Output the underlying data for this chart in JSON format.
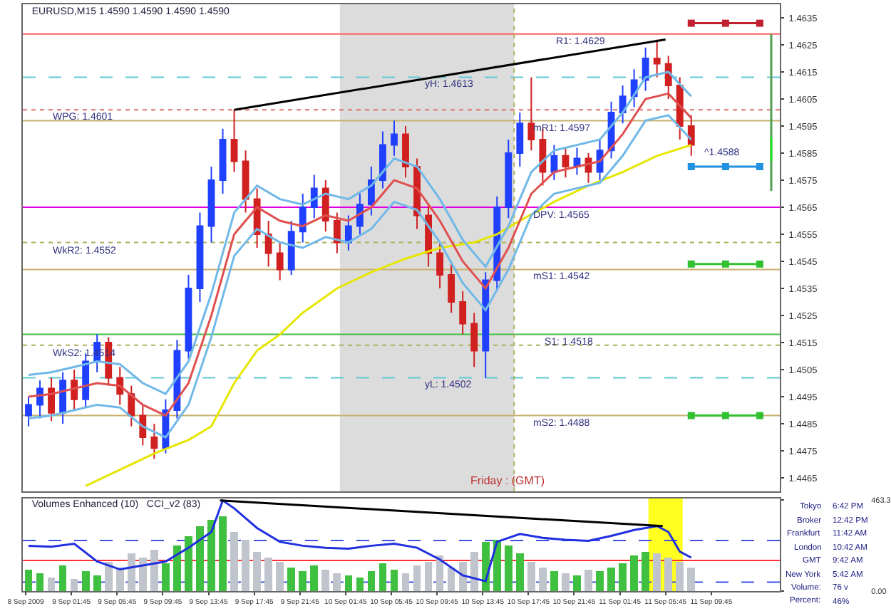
{
  "chart_data": [
    {
      "type": "candlestick",
      "title": "EURUSD,M15 1.4590 1.4590 1.4590 1.4590",
      "tick_labels": "y",
      "grid": false,
      "x": [
        "2009-09-08T22:00",
        "2009-09-08T23:00",
        "2009-09-09T00:00",
        "2009-09-09T01:00",
        "2009-09-09T02:00",
        "2009-09-09T03:00",
        "2009-09-09T04:00",
        "2009-09-09T05:00",
        "2009-09-09T06:00",
        "2009-09-09T07:00",
        "2009-09-09T08:00",
        "2009-09-09T09:00",
        "2009-09-09T10:00",
        "2009-09-09T11:00",
        "2009-09-09T12:00",
        "2009-09-09T13:00",
        "2009-09-09T14:00",
        "2009-09-09T15:00",
        "2009-09-09T16:00",
        "2009-09-09T17:00",
        "2009-09-09T18:00",
        "2009-09-09T19:00",
        "2009-09-09T20:00",
        "2009-09-09T21:00",
        "2009-09-09T22:00",
        "2009-09-09T23:00",
        "2009-09-10T00:00",
        "2009-09-10T01:00",
        "2009-09-10T02:00",
        "2009-09-10T03:00",
        "2009-09-10T04:00",
        "2009-09-10T05:00",
        "2009-09-10T06:00",
        "2009-09-10T07:00",
        "2009-09-10T08:00",
        "2009-09-10T09:00",
        "2009-09-10T10:00",
        "2009-09-10T11:00",
        "2009-09-10T12:00",
        "2009-09-10T13:00",
        "2009-09-10T14:00",
        "2009-09-10T15:00",
        "2009-09-10T16:00",
        "2009-09-10T17:00",
        "2009-09-10T18:00",
        "2009-09-10T19:00",
        "2009-09-10T20:00",
        "2009-09-10T21:00",
        "2009-09-10T22:00",
        "2009-09-10T23:00",
        "2009-09-11T00:00",
        "2009-09-11T01:00",
        "2009-09-11T02:00",
        "2009-09-11T03:00",
        "2009-09-11T04:00",
        "2009-09-11T05:00",
        "2009-09-11T06:00",
        "2009-09-11T07:00",
        "2009-09-11T08:00"
      ],
      "ohlc": [
        [
          1.4488,
          1.4495,
          1.4484,
          1.4492
        ],
        [
          1.4492,
          1.4501,
          1.4487,
          1.4498
        ],
        [
          1.4498,
          1.4502,
          1.4486,
          1.4489
        ],
        [
          1.4489,
          1.4504,
          1.4485,
          1.4501
        ],
        [
          1.4501,
          1.4505,
          1.449,
          1.4494
        ],
        [
          1.4494,
          1.4511,
          1.4491,
          1.4508
        ],
        [
          1.4508,
          1.4518,
          1.4504,
          1.4515
        ],
        [
          1.4515,
          1.4517,
          1.4499,
          1.4502
        ],
        [
          1.4502,
          1.4506,
          1.4492,
          1.4496
        ],
        [
          1.4496,
          1.4499,
          1.4484,
          1.4488
        ],
        [
          1.4488,
          1.4492,
          1.4477,
          1.448
        ],
        [
          1.448,
          1.4485,
          1.4472,
          1.4476
        ],
        [
          1.4476,
          1.4494,
          1.4474,
          1.449
        ],
        [
          1.449,
          1.4516,
          1.4487,
          1.4512
        ],
        [
          1.4512,
          1.454,
          1.4509,
          1.4535
        ],
        [
          1.4535,
          1.4563,
          1.453,
          1.4558
        ],
        [
          1.4558,
          1.458,
          1.4552,
          1.4575
        ],
        [
          1.4575,
          1.4594,
          1.457,
          1.459
        ],
        [
          1.459,
          1.4601,
          1.4578,
          1.4582
        ],
        [
          1.4582,
          1.4586,
          1.4563,
          1.4568
        ],
        [
          1.4568,
          1.4572,
          1.455,
          1.4555
        ],
        [
          1.4555,
          1.456,
          1.4543,
          1.4548
        ],
        [
          1.4548,
          1.4552,
          1.4538,
          1.4542
        ],
        [
          1.4542,
          1.456,
          1.454,
          1.4556
        ],
        [
          1.4556,
          1.457,
          1.4552,
          1.4565
        ],
        [
          1.4565,
          1.4577,
          1.4561,
          1.4572
        ],
        [
          1.4572,
          1.4575,
          1.4556,
          1.456
        ],
        [
          1.456,
          1.4563,
          1.4548,
          1.4552
        ],
        [
          1.4552,
          1.4562,
          1.4549,
          1.4558
        ],
        [
          1.4558,
          1.457,
          1.4555,
          1.4566
        ],
        [
          1.4566,
          1.458,
          1.4562,
          1.4575
        ],
        [
          1.4575,
          1.4593,
          1.4572,
          1.4588
        ],
        [
          1.4588,
          1.4597,
          1.4584,
          1.4592
        ],
        [
          1.4592,
          1.4595,
          1.4576,
          1.458
        ],
        [
          1.458,
          1.4583,
          1.4557,
          1.4562
        ],
        [
          1.4562,
          1.4566,
          1.4543,
          1.4548
        ],
        [
          1.4548,
          1.4552,
          1.4535,
          1.454
        ],
        [
          1.454,
          1.4545,
          1.4526,
          1.453
        ],
        [
          1.453,
          1.4534,
          1.4518,
          1.4522
        ],
        [
          1.4522,
          1.4526,
          1.4506,
          1.4512
        ],
        [
          1.4512,
          1.4541,
          1.4502,
          1.4538
        ],
        [
          1.4538,
          1.4569,
          1.4534,
          1.4565
        ],
        [
          1.4565,
          1.459,
          1.4561,
          1.4585
        ],
        [
          1.4585,
          1.46,
          1.458,
          1.4596
        ],
        [
          1.4596,
          1.4613,
          1.4586,
          1.459
        ],
        [
          1.459,
          1.4594,
          1.4573,
          1.4578
        ],
        [
          1.4578,
          1.4588,
          1.4575,
          1.4584
        ],
        [
          1.4584,
          1.4587,
          1.4576,
          1.458
        ],
        [
          1.458,
          1.4587,
          1.4577,
          1.4583
        ],
        [
          1.4583,
          1.4585,
          1.4574,
          1.4578
        ],
        [
          1.4578,
          1.459,
          1.4575,
          1.4586
        ],
        [
          1.4586,
          1.4604,
          1.4583,
          1.46
        ],
        [
          1.46,
          1.461,
          1.4596,
          1.4606
        ],
        [
          1.4606,
          1.4616,
          1.4602,
          1.4612
        ],
        [
          1.4612,
          1.4624,
          1.4608,
          1.462
        ],
        [
          1.462,
          1.4627,
          1.4613,
          1.4618
        ],
        [
          1.4618,
          1.4621,
          1.4605,
          1.461
        ],
        [
          1.461,
          1.4613,
          1.459,
          1.4595
        ],
        [
          1.4595,
          1.4599,
          1.4584,
          1.4588
        ]
      ],
      "colors": [
        "#2040ff",
        "#2040ff",
        "#d02020",
        "#2040ff",
        "#d02020",
        "#2040ff",
        "#2040ff",
        "#d02020",
        "#d02020",
        "#d02020",
        "#d02020",
        "#d02020",
        "#2040ff",
        "#2040ff",
        "#2040ff",
        "#2040ff",
        "#2040ff",
        "#2040ff",
        "#d02020",
        "#d02020",
        "#d02020",
        "#d02020",
        "#d02020",
        "#2040ff",
        "#2040ff",
        "#2040ff",
        "#d02020",
        "#d02020",
        "#2040ff",
        "#2040ff",
        "#2040ff",
        "#2040ff",
        "#2040ff",
        "#d02020",
        "#d02020",
        "#d02020",
        "#d02020",
        "#d02020",
        "#d02020",
        "#d02020",
        "#2040ff",
        "#2040ff",
        "#2040ff",
        "#2040ff",
        "#d02020",
        "#d02020",
        "#2040ff",
        "#d02020",
        "#2040ff",
        "#d02020",
        "#2040ff",
        "#2040ff",
        "#2040ff",
        "#2040ff",
        "#2040ff",
        "#d02020",
        "#d02020",
        "#d02020",
        "#d02020"
      ],
      "series": [
        {
          "type": "line",
          "color": "#e6e600",
          "x": [
            "2009-09-09T03:00",
            "2009-09-09T06:00",
            "2009-09-09T09:00",
            "2009-09-09T12:00",
            "2009-09-09T14:00",
            "2009-09-09T16:00",
            "2009-09-09T18:00",
            "2009-09-09T20:00",
            "2009-09-09T22:00",
            "2009-09-10T01:00",
            "2009-09-10T04:00",
            "2009-09-10T07:00",
            "2009-09-10T10:00",
            "2009-09-10T13:00",
            "2009-09-10T15:00",
            "2009-09-10T17:00",
            "2009-09-10T20:00",
            "2009-09-10T23:00",
            "2009-09-11T02:00",
            "2009-09-11T05:00",
            "2009-09-11T08:00"
          ],
          "values": [
            1.4462,
            1.4468,
            1.4474,
            1.4479,
            1.4484,
            1.45,
            1.4512,
            1.4518,
            1.4526,
            1.4535,
            1.4541,
            1.4546,
            1.455,
            1.4552,
            1.4555,
            1.456,
            1.4567,
            1.4573,
            1.4578,
            1.4584,
            1.4588
          ]
        },
        {
          "type": "line",
          "color": "#e05050",
          "x": [
            "2009-09-08T22:00",
            "2009-09-09T00:00",
            "2009-09-09T02:00",
            "2009-09-09T04:00",
            "2009-09-09T06:00",
            "2009-09-09T08:00",
            "2009-09-09T10:00",
            "2009-09-09T12:00",
            "2009-09-09T14:00",
            "2009-09-09T16:00",
            "2009-09-09T18:00",
            "2009-09-09T20:00",
            "2009-09-09T22:00",
            "2009-09-10T00:00",
            "2009-09-10T02:00",
            "2009-09-10T04:00",
            "2009-09-10T06:00",
            "2009-09-10T08:00",
            "2009-09-10T10:00",
            "2009-09-10T12:00",
            "2009-09-10T14:00",
            "2009-09-10T16:00",
            "2009-09-10T18:00",
            "2009-09-10T20:00",
            "2009-09-10T22:00",
            "2009-09-11T00:00",
            "2009-09-11T02:00",
            "2009-09-11T04:00",
            "2009-09-11T06:00",
            "2009-09-11T08:00"
          ],
          "values": [
            1.4495,
            1.4496,
            1.4498,
            1.45,
            1.4499,
            1.4492,
            1.4488,
            1.45,
            1.4525,
            1.4555,
            1.4565,
            1.456,
            1.4558,
            1.4562,
            1.456,
            1.4565,
            1.4575,
            1.4572,
            1.456,
            1.4545,
            1.4535,
            1.455,
            1.457,
            1.4578,
            1.458,
            1.4582,
            1.4592,
            1.4605,
            1.4607,
            1.4598
          ]
        },
        {
          "type": "line",
          "color": "#70b8e8",
          "x": [
            "2009-09-08T22:00",
            "2009-09-09T00:00",
            "2009-09-09T02:00",
            "2009-09-09T04:00",
            "2009-09-09T06:00",
            "2009-09-09T08:00",
            "2009-09-09T10:00",
            "2009-09-09T12:00",
            "2009-09-09T14:00",
            "2009-09-09T16:00",
            "2009-09-09T18:00",
            "2009-09-09T20:00",
            "2009-09-09T22:00",
            "2009-09-10T00:00",
            "2009-09-10T02:00",
            "2009-09-10T04:00",
            "2009-09-10T06:00",
            "2009-09-10T08:00",
            "2009-09-10T10:00",
            "2009-09-10T12:00",
            "2009-09-10T14:00",
            "2009-09-10T16:00",
            "2009-09-10T18:00",
            "2009-09-10T20:00",
            "2009-09-10T22:00",
            "2009-09-11T00:00",
            "2009-09-11T02:00",
            "2009-09-11T04:00",
            "2009-09-11T06:00",
            "2009-09-11T08:00"
          ],
          "values": [
            1.4503,
            1.4504,
            1.4506,
            1.4508,
            1.4507,
            1.45,
            1.4496,
            1.4508,
            1.4533,
            1.4563,
            1.4573,
            1.4568,
            1.4566,
            1.457,
            1.4568,
            1.4573,
            1.4583,
            1.458,
            1.4568,
            1.4553,
            1.4543,
            1.4558,
            1.4578,
            1.4586,
            1.4588,
            1.459,
            1.46,
            1.4613,
            1.4615,
            1.4606
          ]
        },
        {
          "type": "line",
          "color": "#70b8e8",
          "x": [
            "2009-09-08T22:00",
            "2009-09-09T00:00",
            "2009-09-09T02:00",
            "2009-09-09T04:00",
            "2009-09-09T06:00",
            "2009-09-09T08:00",
            "2009-09-09T10:00",
            "2009-09-09T12:00",
            "2009-09-09T14:00",
            "2009-09-09T16:00",
            "2009-09-09T18:00",
            "2009-09-09T20:00",
            "2009-09-09T22:00",
            "2009-09-10T00:00",
            "2009-09-10T02:00",
            "2009-09-10T04:00",
            "2009-09-10T06:00",
            "2009-09-10T08:00",
            "2009-09-10T10:00",
            "2009-09-10T12:00",
            "2009-09-10T14:00",
            "2009-09-10T16:00",
            "2009-09-10T18:00",
            "2009-09-10T20:00",
            "2009-09-10T22:00",
            "2009-09-11T00:00",
            "2009-09-11T02:00",
            "2009-09-11T04:00",
            "2009-09-11T06:00",
            "2009-09-11T08:00"
          ],
          "values": [
            1.4487,
            1.4488,
            1.449,
            1.4492,
            1.4491,
            1.4484,
            1.448,
            1.4492,
            1.4517,
            1.4547,
            1.4557,
            1.4552,
            1.455,
            1.4554,
            1.4552,
            1.4557,
            1.4567,
            1.4564,
            1.4552,
            1.4537,
            1.4527,
            1.4542,
            1.4562,
            1.457,
            1.4572,
            1.4574,
            1.4584,
            1.4597,
            1.4599,
            1.459
          ]
        },
        {
          "type": "line",
          "color": "#000000",
          "x": [
            "2009-09-09T16:00",
            "2009-09-11T05:45"
          ],
          "values": [
            1.4601,
            1.4627
          ]
        },
        {
          "type": "line",
          "color": "#c02030",
          "marker": "square",
          "x": [
            "2009-09-11T08:00",
            "2009-09-11T11:00",
            "2009-09-11T14:00"
          ],
          "values": [
            1.4633,
            1.4633,
            1.4633
          ]
        },
        {
          "type": "line",
          "color": "#2090e0",
          "marker": "square",
          "x": [
            "2009-09-11T08:00",
            "2009-09-11T11:00",
            "2009-09-11T14:00"
          ],
          "values": [
            1.458,
            1.458,
            1.458
          ]
        },
        {
          "type": "line",
          "color": "#30c030",
          "marker": "square",
          "x": [
            "2009-09-11T08:00",
            "2009-09-11T11:00",
            "2009-09-11T14:00"
          ],
          "values": [
            1.4544,
            1.4544,
            1.4544
          ]
        },
        {
          "type": "line",
          "color": "#30c030",
          "marker": "square",
          "x": [
            "2009-09-11T08:00",
            "2009-09-11T11:00",
            "2009-09-11T14:00"
          ],
          "values": [
            1.4488,
            1.4488,
            1.4488
          ]
        },
        {
          "type": "line",
          "color": "#50a050",
          "x": [
            "2009-09-11T15:00",
            "2009-09-11T15:00"
          ],
          "values": [
            1.4629,
            1.4571
          ]
        },
        {
          "type": "line",
          "color": "#20e020",
          "x": [
            "2009-09-11T15:00",
            "2009-09-11T15:00"
          ],
          "values": [
            1.4591,
            1.4582
          ]
        }
      ],
      "xlim": [
        "2009-09-08T21:30",
        "2009-09-11T15:45"
      ],
      "ylim": [
        1.446,
        1.464
      ],
      "yticks": [
        1.4465,
        1.4475,
        1.4485,
        1.4495,
        1.4505,
        1.4515,
        1.4525,
        1.4535,
        1.4545,
        1.4555,
        1.4565,
        1.4575,
        1.4585,
        1.4595,
        1.4605,
        1.4615,
        1.4625,
        1.4635
      ],
      "bands": [
        {
          "axis": "x",
          "from": "2009-09-10T01:15",
          "to": "2009-09-10T16:30",
          "color": "#dcdcdc"
        }
      ],
      "ref_lines": [
        {
          "axis": "y",
          "value": 1.4629,
          "color": "#ff6060",
          "line_style": "solid"
        },
        {
          "axis": "y",
          "value": 1.4613,
          "color": "#60c8d8",
          "line_style": "dashed"
        },
        {
          "axis": "y",
          "value": 1.4601,
          "color": "#e07070",
          "line_style": "dotted"
        },
        {
          "axis": "y",
          "value": 1.4597,
          "color": "#c8b070",
          "line_style": "solid"
        },
        {
          "axis": "y",
          "value": 1.4565,
          "color": "#e000e0",
          "line_style": "solid"
        },
        {
          "axis": "y",
          "value": 1.4552,
          "color": "#b0b060",
          "line_style": "dotted"
        },
        {
          "axis": "y",
          "value": 1.4542,
          "color": "#c8b070",
          "line_style": "solid"
        },
        {
          "axis": "y",
          "value": 1.4518,
          "color": "#40c040",
          "line_style": "solid"
        },
        {
          "axis": "y",
          "value": 1.4514,
          "color": "#b0b060",
          "line_style": "dotted"
        },
        {
          "axis": "y",
          "value": 1.4502,
          "color": "#60c8d8",
          "line_style": "dashed"
        },
        {
          "axis": "y",
          "value": 1.4488,
          "color": "#c8b070",
          "line_style": "solid"
        },
        {
          "axis": "x",
          "value": "2009-09-10T16:30",
          "color": "#b0b060",
          "line_style": "dotted"
        }
      ],
      "annotations": [
        {
          "text": "WPG: 1.4601",
          "x": "2009-09-08T23:00",
          "y": 1.4601
        },
        {
          "text": "WkR2: 1.4552",
          "x": "2009-09-08T23:00",
          "y": 1.4552
        },
        {
          "text": "WkS2: 1.4514",
          "x": "2009-09-08T23:00",
          "y": 1.4514
        },
        {
          "text": "yH: 1.4613",
          "x": "2009-09-10T07:30",
          "y": 1.4613
        },
        {
          "text": "yL: 1.4502",
          "x": "2009-09-10T07:30",
          "y": 1.4502
        },
        {
          "text": "R1: 1.4629",
          "x": "2009-09-10T19:00",
          "y": 1.4629
        },
        {
          "text": "mR1: 1.4597",
          "x": "2009-09-10T17:00",
          "y": 1.4597
        },
        {
          "text": "DPV: 1.4565",
          "x": "2009-09-10T17:00",
          "y": 1.4565
        },
        {
          "text": "mS1: 1.4542",
          "x": "2009-09-10T17:00",
          "y": 1.4542
        },
        {
          "text": "S1: 1.4518",
          "x": "2009-09-10T18:00",
          "y": 1.4518
        },
        {
          "text": "mS2: 1.4488",
          "x": "2009-09-10T17:00",
          "y": 1.4488
        },
        {
          "text": "^1.4588",
          "x": "2009-09-11T08:00",
          "y": 1.4588
        },
        "Friday : (GMT)"
      ]
    },
    {
      "type": "bar",
      "title": "Volumes Enhanced (10)   CCI_v2 (83)",
      "grid": false,
      "x": [
        "2009-09-08T22:00",
        "2009-09-08T23:00",
        "2009-09-09T00:00",
        "2009-09-09T01:00",
        "2009-09-09T02:00",
        "2009-09-09T03:00",
        "2009-09-09T04:00",
        "2009-09-09T05:00",
        "2009-09-09T06:00",
        "2009-09-09T07:00",
        "2009-09-09T08:00",
        "2009-09-09T09:00",
        "2009-09-09T10:00",
        "2009-09-09T11:00",
        "2009-09-09T12:00",
        "2009-09-09T13:00",
        "2009-09-09T14:00",
        "2009-09-09T15:00",
        "2009-09-09T16:00",
        "2009-09-09T17:00",
        "2009-09-09T18:00",
        "2009-09-09T19:00",
        "2009-09-09T20:00",
        "2009-09-09T21:00",
        "2009-09-09T22:00",
        "2009-09-09T23:00",
        "2009-09-10T00:00",
        "2009-09-10T01:00",
        "2009-09-10T02:00",
        "2009-09-10T03:00",
        "2009-09-10T04:00",
        "2009-09-10T05:00",
        "2009-09-10T06:00",
        "2009-09-10T07:00",
        "2009-09-10T08:00",
        "2009-09-10T09:00",
        "2009-09-10T10:00",
        "2009-09-10T11:00",
        "2009-09-10T12:00",
        "2009-09-10T13:00",
        "2009-09-10T14:00",
        "2009-09-10T15:00",
        "2009-09-10T16:00",
        "2009-09-10T17:00",
        "2009-09-10T18:00",
        "2009-09-10T19:00",
        "2009-09-10T20:00",
        "2009-09-10T21:00",
        "2009-09-10T22:00",
        "2009-09-10T23:00",
        "2009-09-11T00:00",
        "2009-09-11T01:00",
        "2009-09-11T02:00",
        "2009-09-11T03:00",
        "2009-09-11T04:00",
        "2009-09-11T05:00",
        "2009-09-11T06:00",
        "2009-09-11T07:00",
        "2009-09-11T08:00"
      ],
      "values": [
        110,
        90,
        70,
        130,
        60,
        100,
        80,
        150,
        120,
        190,
        170,
        210,
        140,
        230,
        280,
        330,
        360,
        380,
        300,
        260,
        200,
        170,
        150,
        120,
        100,
        130,
        110,
        90,
        80,
        70,
        100,
        140,
        110,
        90,
        130,
        150,
        180,
        120,
        150,
        200,
        250,
        260,
        230,
        190,
        150,
        120,
        100,
        90,
        80,
        110,
        100,
        120,
        140,
        180,
        200,
        190,
        170,
        150,
        120
      ],
      "colors": [
        "#40c040",
        "#40c040",
        "#c0c4cc",
        "#40c040",
        "#c0c4cc",
        "#40c040",
        "#40c040",
        "#c0c4cc",
        "#c0c4cc",
        "#c0c4cc",
        "#c0c4cc",
        "#c0c4cc",
        "#40c040",
        "#40c040",
        "#40c040",
        "#40c040",
        "#40c040",
        "#40c040",
        "#c0c4cc",
        "#c0c4cc",
        "#c0c4cc",
        "#c0c4cc",
        "#c0c4cc",
        "#40c040",
        "#40c040",
        "#40c040",
        "#c0c4cc",
        "#c0c4cc",
        "#40c040",
        "#40c040",
        "#40c040",
        "#40c040",
        "#40c040",
        "#c0c4cc",
        "#c0c4cc",
        "#c0c4cc",
        "#c0c4cc",
        "#c0c4cc",
        "#c0c4cc",
        "#c0c4cc",
        "#40c040",
        "#40c040",
        "#40c040",
        "#40c040",
        "#c0c4cc",
        "#c0c4cc",
        "#40c040",
        "#c0c4cc",
        "#40c040",
        "#c0c4cc",
        "#40c040",
        "#40c040",
        "#40c040",
        "#40c040",
        "#40c040",
        "#c0c4cc",
        "#c0c4cc",
        "#c0c4cc",
        "#c0c4cc"
      ],
      "series": [
        {
          "type": "line",
          "color": "#2030e0",
          "x": [
            "2009-09-08T22:00",
            "2009-09-09T00:00",
            "2009-09-09T02:00",
            "2009-09-09T04:00",
            "2009-09-09T06:00",
            "2009-09-09T08:00",
            "2009-09-09T10:00",
            "2009-09-09T12:00",
            "2009-09-09T14:00",
            "2009-09-09T15:00",
            "2009-09-09T16:00",
            "2009-09-09T18:00",
            "2009-09-09T20:00",
            "2009-09-09T22:00",
            "2009-09-10T00:00",
            "2009-09-10T02:00",
            "2009-09-10T04:00",
            "2009-09-10T06:00",
            "2009-09-10T08:00",
            "2009-09-10T10:00",
            "2009-09-10T12:00",
            "2009-09-10T14:00",
            "2009-09-10T15:00",
            "2009-09-10T17:00",
            "2009-09-10T19:00",
            "2009-09-10T21:00",
            "2009-09-10T23:00",
            "2009-09-11T01:00",
            "2009-09-11T03:00",
            "2009-09-11T05:00",
            "2009-09-11T06:00",
            "2009-09-11T07:00",
            "2009-09-11T08:00"
          ],
          "values": [
            230,
            225,
            240,
            150,
            110,
            130,
            150,
            220,
            300,
            460,
            420,
            320,
            250,
            230,
            220,
            215,
            230,
            240,
            220,
            160,
            80,
            50,
            250,
            290,
            270,
            260,
            255,
            280,
            310,
            330,
            300,
            200,
            170
          ]
        },
        {
          "type": "line",
          "color": "#000000",
          "x": [
            "2009-09-09T14:45",
            "2009-09-11T05:30"
          ],
          "values": [
            460,
            330
          ]
        }
      ],
      "xlim": [
        "2009-09-08T21:30",
        "2009-09-11T15:45"
      ],
      "xticks": [
        {
          "value": "2009-09-08T21:45",
          "label": "8 Sep 2009"
        },
        {
          "value": "2009-09-09T01:45",
          "label": "9 Sep 01:45"
        },
        {
          "value": "2009-09-09T05:45",
          "label": "9 Sep 05:45"
        },
        {
          "value": "2009-09-09T09:45",
          "label": "9 Sep 09:45"
        },
        {
          "value": "2009-09-09T13:45",
          "label": "9 Sep 13:45"
        },
        {
          "value": "2009-09-09T17:45",
          "label": "9 Sep 17:45"
        },
        {
          "value": "2009-09-09T21:45",
          "label": "9 Sep 21:45"
        },
        {
          "value": "2009-09-10T01:45",
          "label": "10 Sep 01:45"
        },
        {
          "value": "2009-09-10T05:45",
          "label": "10 Sep 05:45"
        },
        {
          "value": "2009-09-10T09:45",
          "label": "10 Sep 09:45"
        },
        {
          "value": "2009-09-10T13:45",
          "label": "10 Sep 13:45"
        },
        {
          "value": "2009-09-10T17:45",
          "label": "10 Sep 17:45"
        },
        {
          "value": "2009-09-10T21:45",
          "label": "10 Sep 21:45"
        },
        {
          "value": "2009-09-11T01:45",
          "label": "11 Sep 01:45"
        },
        {
          "value": "2009-09-11T05:45",
          "label": "11 Sep 05:45"
        },
        {
          "value": "2009-09-11T09:45",
          "label": "11 Sep 09:45"
        }
      ],
      "ylim": [
        0,
        470
      ],
      "yticks": [
        463.3,
        {
          "value": 0,
          "label": "0.00"
        }
      ],
      "bands": [
        {
          "axis": "x",
          "from": "2009-09-11T04:15",
          "to": "2009-09-11T07:15",
          "color": "#ffff20"
        }
      ],
      "ref_lines": [
        {
          "axis": "y",
          "value": 155,
          "color": "#ff3030",
          "line_style": "solid"
        },
        {
          "axis": "y",
          "value": 257,
          "color": "#4050e0",
          "line_style": "dashed"
        },
        {
          "axis": "y",
          "value": 45,
          "color": "#4050e0",
          "line_style": "dashed"
        }
      ],
      "annotations": [
        "Tokyo",
        "6:42 PM",
        "Broker",
        "12:42 PM",
        "Frankfurt",
        "11:42 AM",
        "London",
        "10:42 AM",
        "GMT",
        "9:42 AM",
        "New York",
        "5:42 AM",
        "Volume:",
        "76 v",
        "Percent:",
        "46%"
      ]
    }
  ]
}
